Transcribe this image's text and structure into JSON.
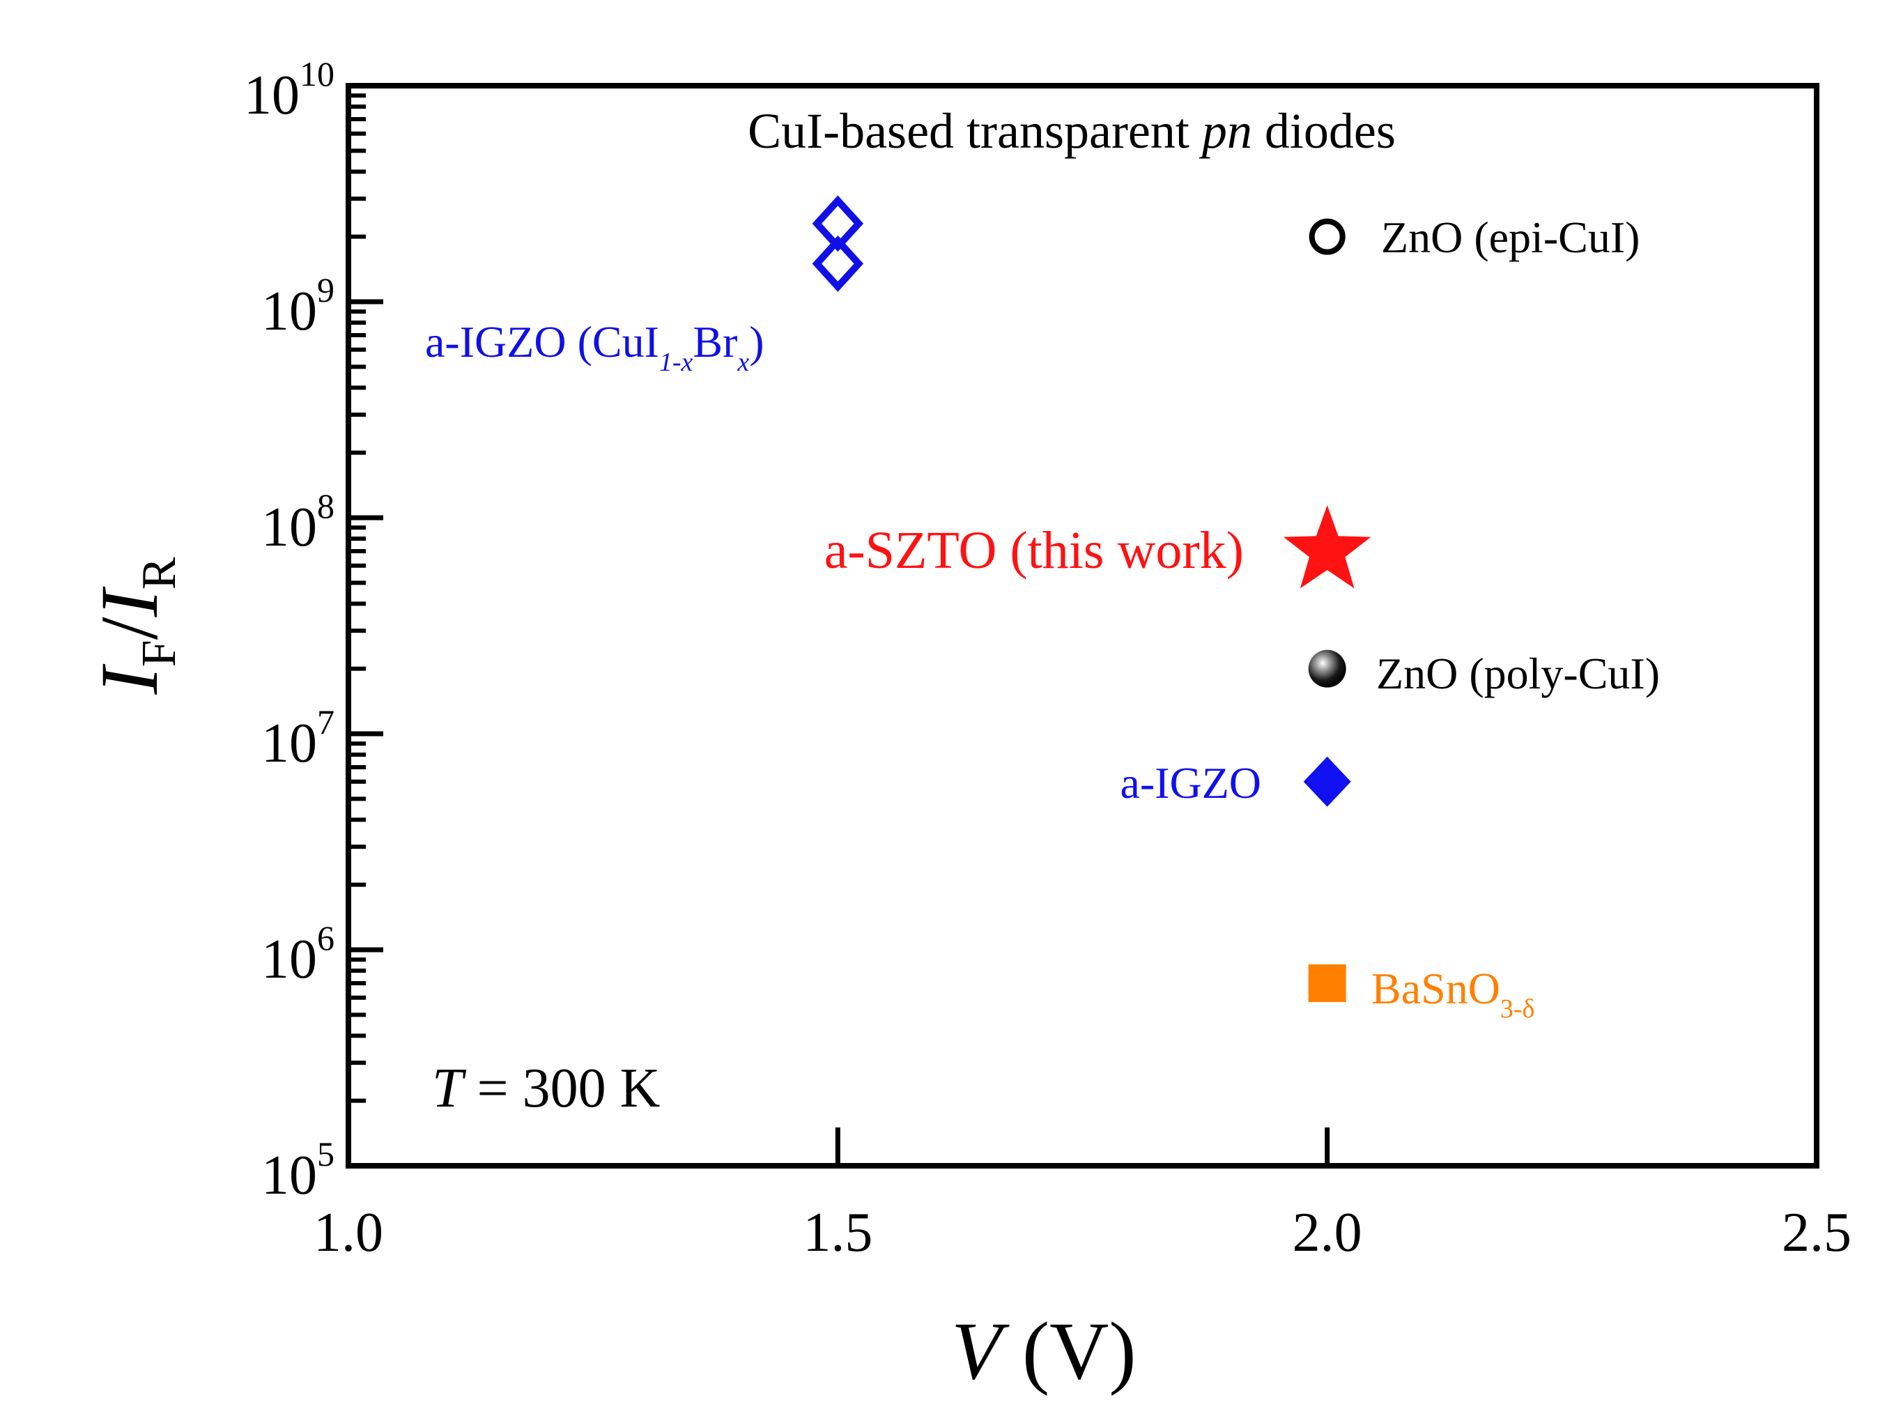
{
  "chart_data": {
    "type": "scatter",
    "title": "CuI-based transparent pn diodes",
    "title_main": "CuI-based transparent ",
    "title_italic": "pn",
    "title_tail": " diodes",
    "xlabel": {
      "var": "V",
      "unit": "(V)"
    },
    "ylabel": {
      "num": "I",
      "num_sub": "F",
      "slash": "/",
      "den": "I",
      "den_sub": "R"
    },
    "x": {
      "min": 1.0,
      "max": 2.5,
      "ticks": [
        1.0,
        1.5,
        2.0,
        2.5
      ],
      "tick_labels": [
        "1.0",
        "1.5",
        "2.0",
        "2.5"
      ]
    },
    "y": {
      "scale": "log",
      "min": 100000,
      "max": 10000000000,
      "ticks": [
        100000,
        1000000,
        10000000,
        100000000,
        1000000000,
        10000000000
      ],
      "tick_base": "10",
      "tick_exponents": [
        "5",
        "6",
        "7",
        "8",
        "9",
        "10"
      ]
    },
    "annotation": {
      "var": "T",
      "text": " = 300 K"
    },
    "series": [
      {
        "name": "a-IGZO (CuI1-xBrx)",
        "label_main": "a-IGZO (CuI",
        "label_sub1": "1-x",
        "label_mid": "Br",
        "label_sub2": "x",
        "label_end": ")",
        "marker": "diamond-open",
        "color": "#1010e6",
        "points": [
          {
            "x": 1.5,
            "y": 2300000000
          },
          {
            "x": 1.5,
            "y": 1500000000
          }
        ]
      },
      {
        "name": "ZnO (epi-CuI)",
        "label_main": "ZnO (epi-CuI)",
        "marker": "circle-open",
        "color": "#000000",
        "points": [
          {
            "x": 2.0,
            "y": 2000000000
          }
        ]
      },
      {
        "name": "a-SZTO (this work)",
        "label_main": "a-SZTO (this work)",
        "marker": "star",
        "color": "#ff1212",
        "points": [
          {
            "x": 2.0,
            "y": 70000000
          }
        ]
      },
      {
        "name": "ZnO (poly-CuI)",
        "label_main": "ZnO (poly-CuI)",
        "marker": "circle-filled",
        "color": "#111111",
        "points": [
          {
            "x": 2.0,
            "y": 20000000
          }
        ]
      },
      {
        "name": "a-IGZO",
        "label_main": "a-IGZO",
        "marker": "diamond-filled",
        "color": "#1010f0",
        "points": [
          {
            "x": 2.0,
            "y": 6000000
          }
        ]
      },
      {
        "name": "BaSnO3-δ",
        "label_main": "BaSnO",
        "label_sub1": "3-δ",
        "marker": "square-filled",
        "color": "#ff8000",
        "points": [
          {
            "x": 2.0,
            "y": 700000
          }
        ]
      }
    ],
    "grid": false
  }
}
